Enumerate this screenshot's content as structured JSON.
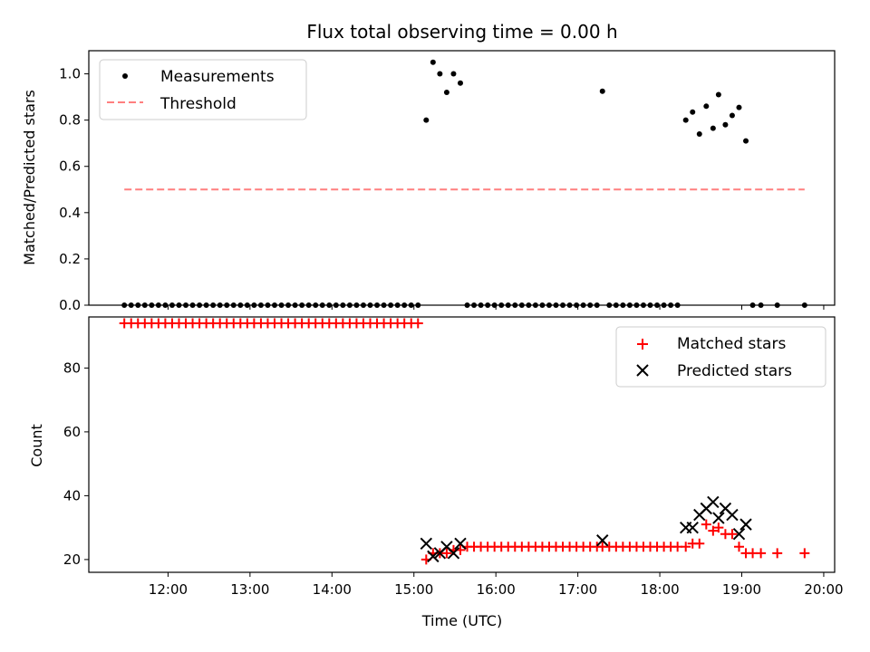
{
  "chart_data": [
    {
      "type": "scatter",
      "title": "Flux total observing time = 0.00 h",
      "ylabel": "Matched/Predicted stars",
      "ylim": [
        0,
        1.1
      ],
      "yticks": [
        "0.0",
        "0.2",
        "0.4",
        "0.6",
        "0.8",
        "1.0"
      ],
      "xlim": [
        "11:02",
        "20:08"
      ],
      "grid": false,
      "legend": {
        "placement": "top-left",
        "entries": [
          "Measurements",
          "Threshold"
        ]
      },
      "series": [
        {
          "name": "Measurements",
          "marker": "dot",
          "color": "#000000",
          "points": [
            [
              "11:28",
              0.0
            ],
            [
              "11:33",
              0.0
            ],
            [
              "11:38",
              0.0
            ],
            [
              "11:43",
              0.0
            ],
            [
              "11:48",
              0.0
            ],
            [
              "11:53",
              0.0
            ],
            [
              "11:58",
              0.0
            ],
            [
              "12:03",
              0.0
            ],
            [
              "12:08",
              0.0
            ],
            [
              "12:13",
              0.0
            ],
            [
              "12:18",
              0.0
            ],
            [
              "12:23",
              0.0
            ],
            [
              "12:28",
              0.0
            ],
            [
              "12:33",
              0.0
            ],
            [
              "12:38",
              0.0
            ],
            [
              "12:43",
              0.0
            ],
            [
              "12:48",
              0.0
            ],
            [
              "12:53",
              0.0
            ],
            [
              "12:58",
              0.0
            ],
            [
              "13:03",
              0.0
            ],
            [
              "13:08",
              0.0
            ],
            [
              "13:13",
              0.0
            ],
            [
              "13:18",
              0.0
            ],
            [
              "13:23",
              0.0
            ],
            [
              "13:28",
              0.0
            ],
            [
              "13:33",
              0.0
            ],
            [
              "13:38",
              0.0
            ],
            [
              "13:43",
              0.0
            ],
            [
              "13:48",
              0.0
            ],
            [
              "13:53",
              0.0
            ],
            [
              "13:58",
              0.0
            ],
            [
              "14:03",
              0.0
            ],
            [
              "14:08",
              0.0
            ],
            [
              "14:13",
              0.0
            ],
            [
              "14:18",
              0.0
            ],
            [
              "14:23",
              0.0
            ],
            [
              "14:28",
              0.0
            ],
            [
              "14:33",
              0.0
            ],
            [
              "14:38",
              0.0
            ],
            [
              "14:43",
              0.0
            ],
            [
              "14:48",
              0.0
            ],
            [
              "14:53",
              0.0
            ],
            [
              "14:58",
              0.0
            ],
            [
              "15:03",
              0.0
            ],
            [
              "15:09",
              0.8
            ],
            [
              "15:14",
              1.05
            ],
            [
              "15:19",
              1.0
            ],
            [
              "15:24",
              0.92
            ],
            [
              "15:29",
              1.0
            ],
            [
              "15:34",
              0.96
            ],
            [
              "15:39",
              0.0
            ],
            [
              "15:44",
              0.0
            ],
            [
              "15:49",
              0.0
            ],
            [
              "15:54",
              0.0
            ],
            [
              "15:59",
              0.0
            ],
            [
              "16:04",
              0.0
            ],
            [
              "16:09",
              0.0
            ],
            [
              "16:14",
              0.0
            ],
            [
              "16:19",
              0.0
            ],
            [
              "16:24",
              0.0
            ],
            [
              "16:29",
              0.0
            ],
            [
              "16:34",
              0.0
            ],
            [
              "16:39",
              0.0
            ],
            [
              "16:44",
              0.0
            ],
            [
              "16:49",
              0.0
            ],
            [
              "16:54",
              0.0
            ],
            [
              "16:59",
              0.0
            ],
            [
              "17:04",
              0.0
            ],
            [
              "17:09",
              0.0
            ],
            [
              "17:14",
              0.0
            ],
            [
              "17:18",
              0.925
            ],
            [
              "17:23",
              0.0
            ],
            [
              "17:28",
              0.0
            ],
            [
              "17:33",
              0.0
            ],
            [
              "17:38",
              0.0
            ],
            [
              "17:43",
              0.0
            ],
            [
              "17:48",
              0.0
            ],
            [
              "17:53",
              0.0
            ],
            [
              "17:58",
              0.0
            ],
            [
              "18:03",
              0.0
            ],
            [
              "18:08",
              0.0
            ],
            [
              "18:13",
              0.0
            ],
            [
              "18:19",
              0.8
            ],
            [
              "18:24",
              0.835
            ],
            [
              "18:29",
              0.74
            ],
            [
              "18:34",
              0.86
            ],
            [
              "18:39",
              0.765
            ],
            [
              "18:43",
              0.91
            ],
            [
              "18:48",
              0.78
            ],
            [
              "18:53",
              0.82
            ],
            [
              "18:58",
              0.855
            ],
            [
              "19:03",
              0.71
            ],
            [
              "19:08",
              0.0
            ],
            [
              "19:14",
              0.0
            ],
            [
              "19:26",
              0.0
            ],
            [
              "19:46",
              0.0
            ]
          ]
        },
        {
          "name": "Threshold",
          "type": "line",
          "style": "dashed",
          "color": "#ff7f7f",
          "points": [
            [
              "11:28",
              0.5
            ],
            [
              "19:46",
              0.5
            ]
          ]
        }
      ]
    },
    {
      "type": "scatter",
      "xlabel": "Time (UTC)",
      "ylabel": "Count",
      "ylim": [
        16,
        96
      ],
      "yticks": [
        "20",
        "40",
        "60",
        "80"
      ],
      "xlim": [
        "11:02",
        "20:08"
      ],
      "xticks": [
        "12:00",
        "13:00",
        "14:00",
        "15:00",
        "16:00",
        "17:00",
        "18:00",
        "19:00",
        "20:00"
      ],
      "grid": false,
      "legend": {
        "placement": "top-right",
        "entries": [
          "Matched stars",
          "Predicted stars"
        ]
      },
      "series": [
        {
          "name": "Matched stars",
          "marker": "plus",
          "color": "#ff0000",
          "points": [
            [
              "11:28",
              94
            ],
            [
              "11:33",
              94
            ],
            [
              "11:38",
              94
            ],
            [
              "11:43",
              94
            ],
            [
              "11:48",
              94
            ],
            [
              "11:53",
              94
            ],
            [
              "11:58",
              94
            ],
            [
              "12:03",
              94
            ],
            [
              "12:08",
              94
            ],
            [
              "12:13",
              94
            ],
            [
              "12:18",
              94
            ],
            [
              "12:23",
              94
            ],
            [
              "12:28",
              94
            ],
            [
              "12:33",
              94
            ],
            [
              "12:38",
              94
            ],
            [
              "12:43",
              94
            ],
            [
              "12:48",
              94
            ],
            [
              "12:53",
              94
            ],
            [
              "12:58",
              94
            ],
            [
              "13:03",
              94
            ],
            [
              "13:08",
              94
            ],
            [
              "13:13",
              94
            ],
            [
              "13:18",
              94
            ],
            [
              "13:23",
              94
            ],
            [
              "13:28",
              94
            ],
            [
              "13:33",
              94
            ],
            [
              "13:38",
              94
            ],
            [
              "13:43",
              94
            ],
            [
              "13:48",
              94
            ],
            [
              "13:53",
              94
            ],
            [
              "13:58",
              94
            ],
            [
              "14:03",
              94
            ],
            [
              "14:08",
              94
            ],
            [
              "14:13",
              94
            ],
            [
              "14:18",
              94
            ],
            [
              "14:23",
              94
            ],
            [
              "14:28",
              94
            ],
            [
              "14:33",
              94
            ],
            [
              "14:38",
              94
            ],
            [
              "14:43",
              94
            ],
            [
              "14:48",
              94
            ],
            [
              "14:53",
              94
            ],
            [
              "14:58",
              94
            ],
            [
              "15:03",
              94
            ],
            [
              "15:09",
              20
            ],
            [
              "15:14",
              22
            ],
            [
              "15:19",
              22
            ],
            [
              "15:24",
              22
            ],
            [
              "15:29",
              23
            ],
            [
              "15:34",
              23
            ],
            [
              "15:39",
              24
            ],
            [
              "15:44",
              24
            ],
            [
              "15:49",
              24
            ],
            [
              "15:54",
              24
            ],
            [
              "15:59",
              24
            ],
            [
              "16:04",
              24
            ],
            [
              "16:09",
              24
            ],
            [
              "16:14",
              24
            ],
            [
              "16:19",
              24
            ],
            [
              "16:24",
              24
            ],
            [
              "16:29",
              24
            ],
            [
              "16:34",
              24
            ],
            [
              "16:39",
              24
            ],
            [
              "16:44",
              24
            ],
            [
              "16:49",
              24
            ],
            [
              "16:54",
              24
            ],
            [
              "16:59",
              24
            ],
            [
              "17:04",
              24
            ],
            [
              "17:09",
              24
            ],
            [
              "17:14",
              24
            ],
            [
              "17:18",
              24
            ],
            [
              "17:23",
              24
            ],
            [
              "17:28",
              24
            ],
            [
              "17:33",
              24
            ],
            [
              "17:38",
              24
            ],
            [
              "17:43",
              24
            ],
            [
              "17:48",
              24
            ],
            [
              "17:53",
              24
            ],
            [
              "17:58",
              24
            ],
            [
              "18:03",
              24
            ],
            [
              "18:08",
              24
            ],
            [
              "18:13",
              24
            ],
            [
              "18:19",
              24
            ],
            [
              "18:24",
              25
            ],
            [
              "18:29",
              25
            ],
            [
              "18:34",
              31
            ],
            [
              "18:39",
              29
            ],
            [
              "18:43",
              30
            ],
            [
              "18:48",
              28
            ],
            [
              "18:53",
              28
            ],
            [
              "18:58",
              24
            ],
            [
              "19:03",
              22
            ],
            [
              "19:08",
              22
            ],
            [
              "19:14",
              22
            ],
            [
              "19:26",
              22
            ],
            [
              "19:46",
              22
            ]
          ]
        },
        {
          "name": "Predicted stars",
          "marker": "x",
          "color": "#000000",
          "points": [
            [
              "15:09",
              25
            ],
            [
              "15:14",
              21
            ],
            [
              "15:19",
              22
            ],
            [
              "15:24",
              24
            ],
            [
              "15:29",
              22
            ],
            [
              "15:34",
              25
            ],
            [
              "17:18",
              26
            ],
            [
              "18:19",
              30
            ],
            [
              "18:24",
              30
            ],
            [
              "18:29",
              34
            ],
            [
              "18:34",
              36
            ],
            [
              "18:39",
              38
            ],
            [
              "18:43",
              33
            ],
            [
              "18:48",
              36
            ],
            [
              "18:53",
              34
            ],
            [
              "18:58",
              28
            ],
            [
              "19:03",
              31
            ]
          ]
        }
      ]
    }
  ]
}
